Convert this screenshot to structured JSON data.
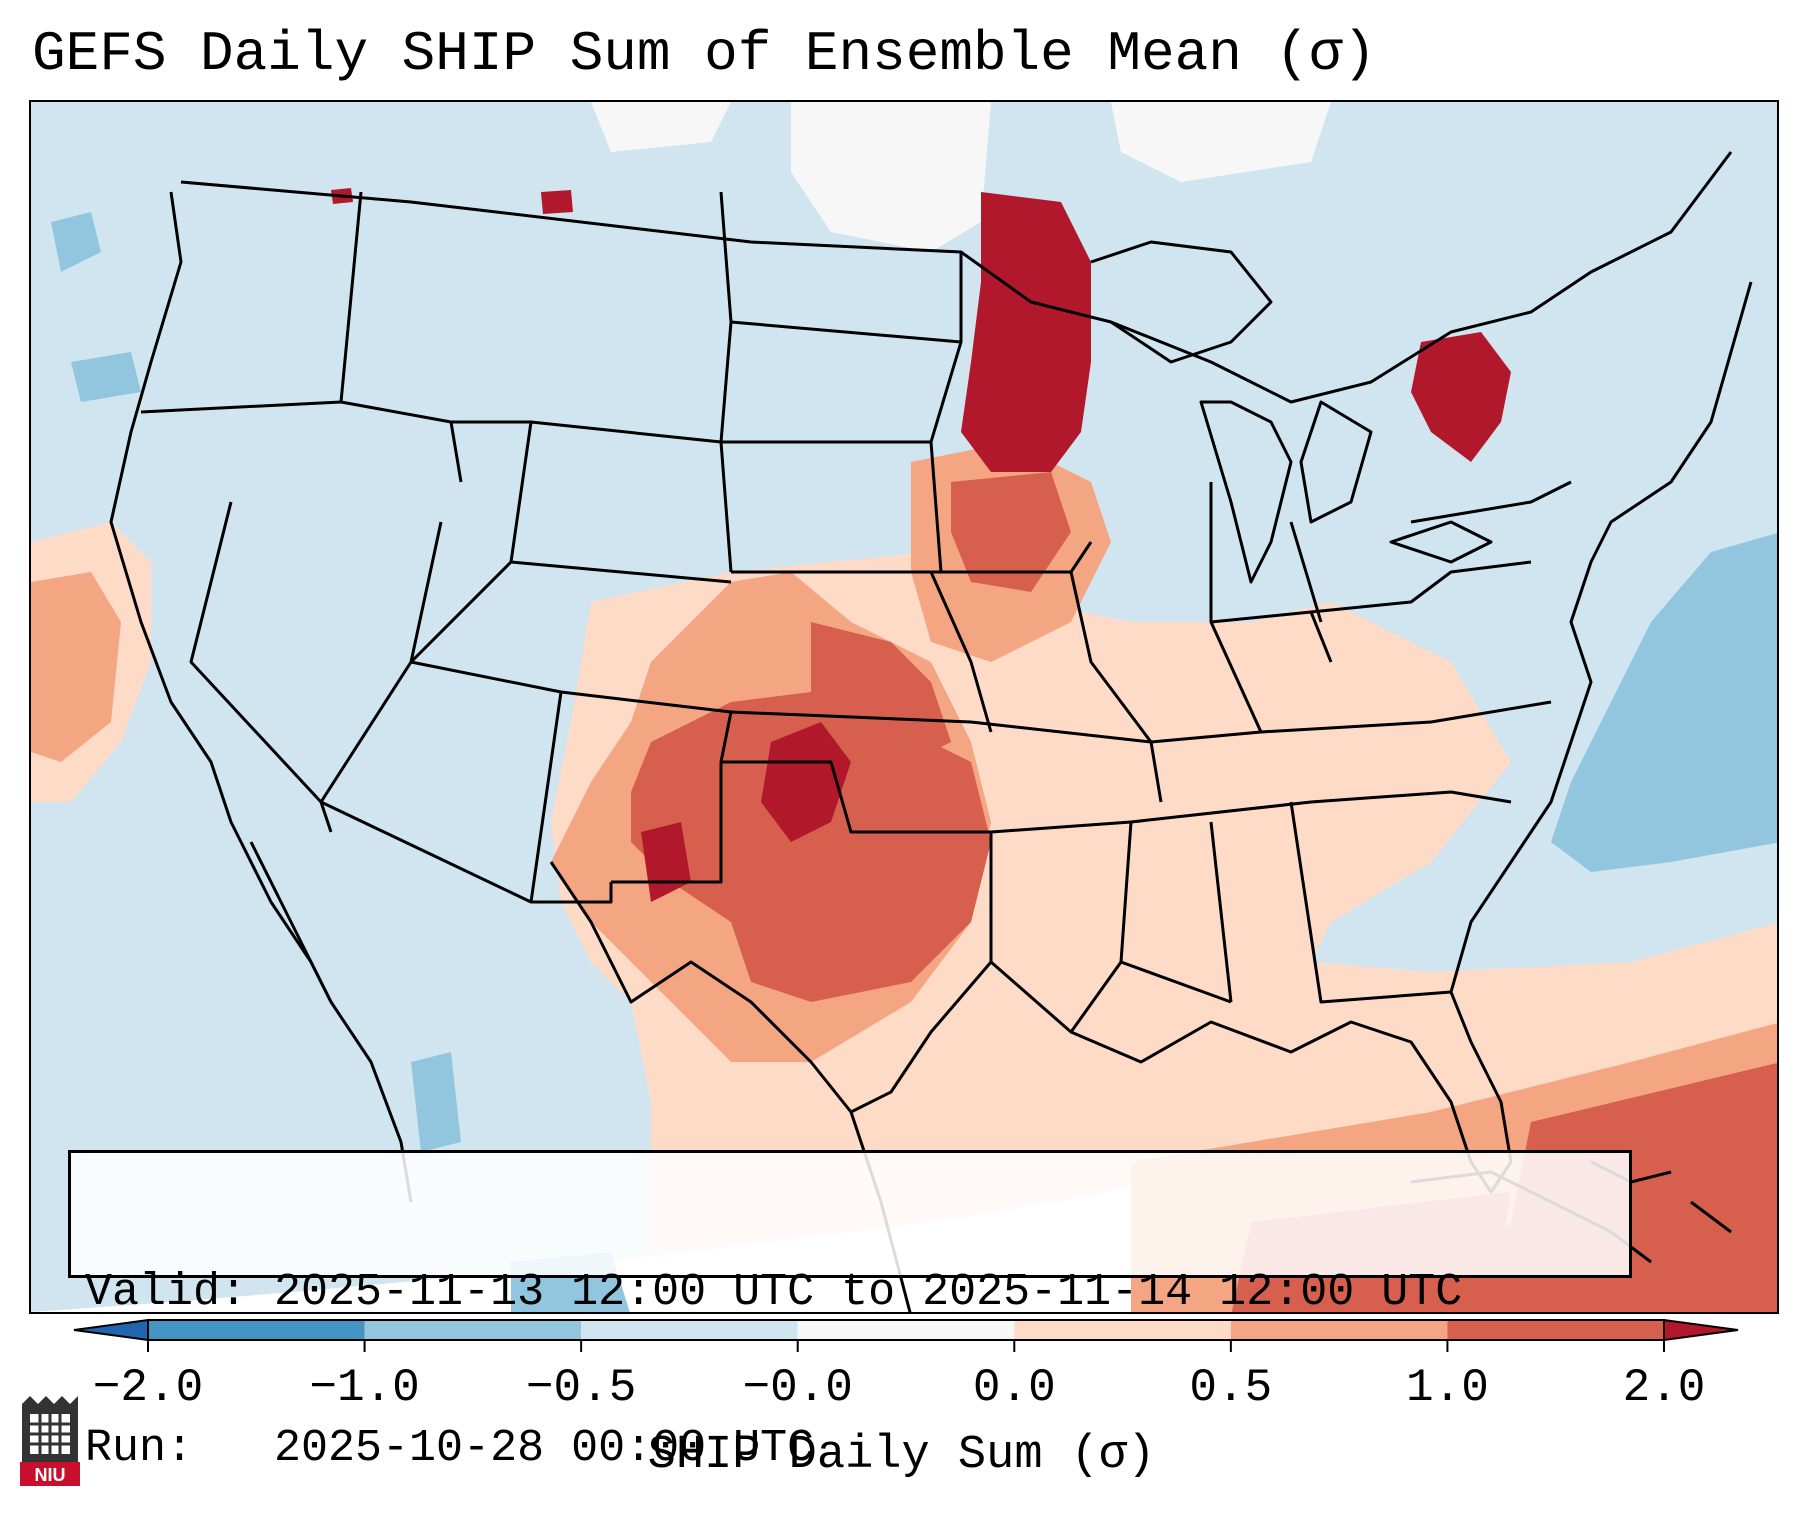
{
  "title": "GEFS Daily SHIP Sum of Ensemble Mean (σ)",
  "info": {
    "valid_line": "Valid: 2025-11-13 12:00 UTC to 2025-11-14 12:00 UTC",
    "run_line": "Run:   2025-10-28 00:00 UTC"
  },
  "colorbar": {
    "label": "SHIP Daily Sum (σ)",
    "ticks": [
      "−2.0",
      "−1.0",
      "−0.5",
      "−0.0",
      "0.0",
      "0.5",
      "1.0",
      "2.0"
    ],
    "bins": [
      {
        "range": "< -2.0",
        "color": "#2166ac"
      },
      {
        "range": "-2.0 to -1.0",
        "color": "#4393c3"
      },
      {
        "range": "-1.0 to -0.5",
        "color": "#92c5de"
      },
      {
        "range": "-0.5 to -0.0",
        "color": "#d1e5f0"
      },
      {
        "range": "-0.0 to 0.0",
        "color": "#f7f7f7"
      },
      {
        "range": "0.0 to 0.5",
        "color": "#fddbc7"
      },
      {
        "range": "0.5 to 1.0",
        "color": "#f4a582"
      },
      {
        "range": "1.0 to 2.0",
        "color": "#d6604d"
      },
      {
        "range": "> 2.0",
        "color": "#b2182b"
      }
    ]
  },
  "colors": {
    "background_field": "#d1e5f0",
    "boundary_lines": "#000000",
    "logo_red": "#c8102e",
    "logo_dark": "#333333"
  },
  "logo": {
    "text": "NIU"
  }
}
